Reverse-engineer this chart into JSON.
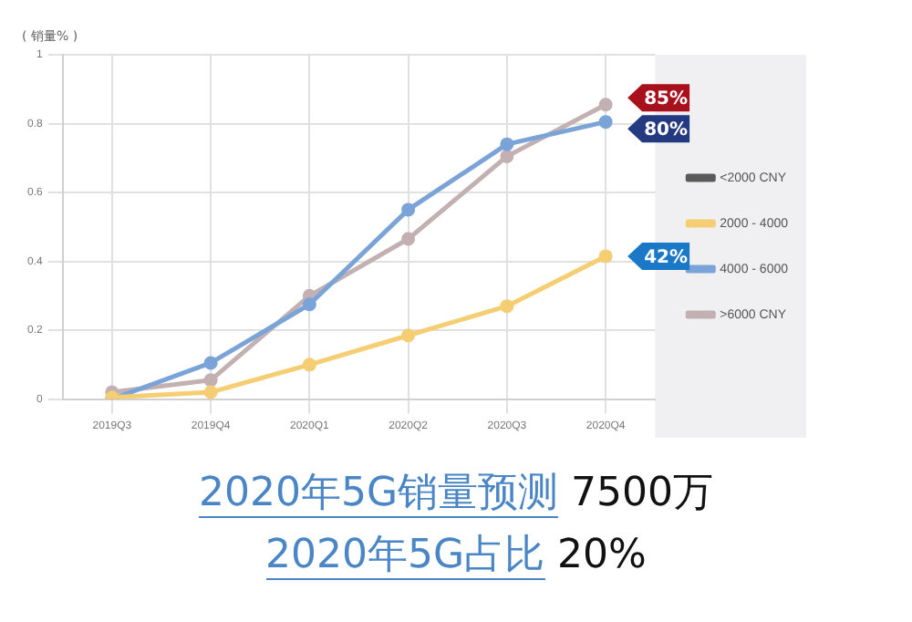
{
  "chart_data": {
    "type": "line",
    "ylabel": "( 销量% )",
    "categories": [
      "2019Q3",
      "2019Q4",
      "2020Q1",
      "2020Q2",
      "2020Q3",
      "2020Q4"
    ],
    "series": [
      {
        "name": "<2000 CNY",
        "color": "#5a5a5a",
        "values": [
          null,
          null,
          null,
          null,
          null,
          null
        ]
      },
      {
        "name": "2000 - 4000",
        "color": "#f5cd73",
        "values": [
          0.005,
          0.02,
          0.1,
          0.185,
          0.27,
          0.415
        ]
      },
      {
        "name": "4000 - 6000",
        "color": "#7aa3d8",
        "values": [
          0,
          0.105,
          0.275,
          0.55,
          0.74,
          0.805
        ]
      },
      {
        "name": ">6000 CNY",
        "color": "#c2b0b2",
        "values": [
          0.02,
          0.055,
          0.3,
          0.465,
          0.705,
          0.855
        ]
      }
    ],
    "ylim": [
      0,
      1
    ],
    "yticks": [
      0,
      0.2,
      0.4,
      0.6,
      0.8,
      1
    ],
    "grid": true,
    "legend": "right",
    "marker": "circle",
    "annotations": [
      {
        "text": "85%",
        "x": "2020Q4",
        "y": 0.855
      },
      {
        "text": "80%",
        "x": "2020Q4",
        "y": 0.805
      },
      {
        "text": "42%",
        "x": "2020Q4",
        "y": 0.415
      },
      "2020年5G销量预测 7500万",
      "2020年5G占比 20%"
    ]
  }
}
